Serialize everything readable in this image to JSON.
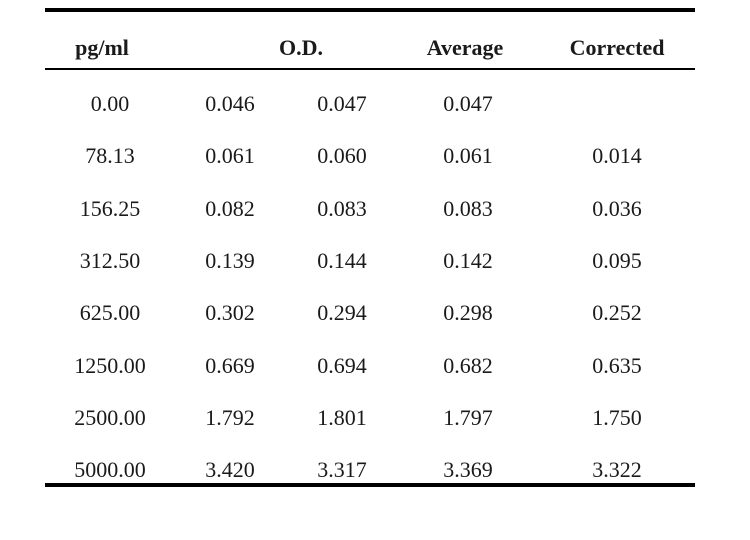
{
  "table": {
    "headers": {
      "concentration": "pg/ml",
      "od": "O.D.",
      "average": "Average",
      "corrected": "Corrected"
    },
    "rows": [
      {
        "conc": "0.00",
        "od1": "0.046",
        "od2": "0.047",
        "avg": "0.047",
        "corr": ""
      },
      {
        "conc": "78.13",
        "od1": "0.061",
        "od2": "0.060",
        "avg": "0.061",
        "corr": "0.014"
      },
      {
        "conc": "156.25",
        "od1": "0.082",
        "od2": "0.083",
        "avg": "0.083",
        "corr": "0.036"
      },
      {
        "conc": "312.50",
        "od1": "0.139",
        "od2": "0.144",
        "avg": "0.142",
        "corr": "0.095"
      },
      {
        "conc": "625.00",
        "od1": "0.302",
        "od2": "0.294",
        "avg": "0.298",
        "corr": "0.252"
      },
      {
        "conc": "1250.00",
        "od1": "0.669",
        "od2": "0.694",
        "avg": "0.682",
        "corr": "0.635"
      },
      {
        "conc": "2500.00",
        "od1": "1.792",
        "od2": "1.801",
        "avg": "1.797",
        "corr": "1.750"
      },
      {
        "conc": "5000.00",
        "od1": "3.420",
        "od2": "3.317",
        "avg": "3.369",
        "corr": "3.322"
      }
    ]
  }
}
